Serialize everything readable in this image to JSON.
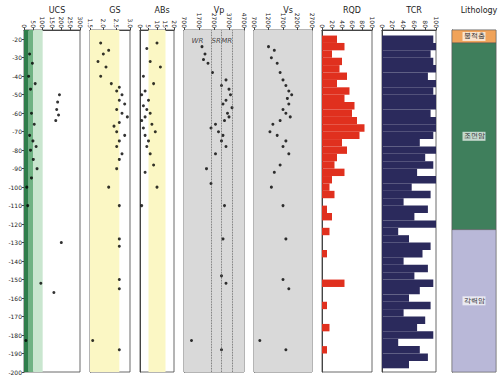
{
  "chart_data": [
    {
      "type": "scatter",
      "title": "UCS",
      "color": "#000000",
      "marker": "circle",
      "tick_labels": true,
      "x": [
        30,
        45,
        25,
        60,
        35,
        190,
        180,
        175,
        185,
        170,
        40,
        55,
        30,
        48,
        65,
        35,
        50,
        70,
        40,
        15,
        20,
        200,
        90,
        160,
        10
      ],
      "y": [
        -28,
        -33,
        -40,
        -44,
        -47,
        -50,
        -54,
        -58,
        -61,
        -64,
        -60,
        -66,
        -72,
        -75,
        -78,
        -80,
        -85,
        -90,
        -95,
        -100,
        -110,
        -130,
        -152,
        -157,
        -183
      ],
      "xlim": [
        0,
        300
      ],
      "xticks": [
        0,
        50,
        100,
        150,
        200,
        250,
        300
      ],
      "ylim": [
        -200,
        -15
      ],
      "yticks": [
        -200,
        -190,
        -180,
        -170,
        -160,
        -150,
        -140,
        -130,
        -120,
        -110,
        -100,
        -90,
        -80,
        -70,
        -60,
        -50,
        -40,
        -30,
        -20
      ],
      "bands": [
        {
          "from": 0,
          "to": 25,
          "color": "#2e7d4a"
        },
        {
          "from": 25,
          "to": 50,
          "color": "#6fb283"
        },
        {
          "from": 50,
          "to": 100,
          "color": "#c9e6cf"
        }
      ]
    },
    {
      "type": "scatter",
      "title": "GS",
      "color": "#000000",
      "marker": "circle",
      "tick_labels": "x",
      "x": [
        1.9,
        2.2,
        2.0,
        1.8,
        2.1,
        1.9,
        2.3,
        2.6,
        2.5,
        2.7,
        2.6,
        2.8,
        2.5,
        2.7,
        2.9,
        2.6,
        2.4,
        2.5,
        2.8,
        2.6,
        2.5,
        2.7,
        2.6,
        2.5,
        2.2,
        2.6,
        2.6,
        2.6,
        2.6,
        2.6,
        1.6,
        2.6
      ],
      "y": [
        -22,
        -26,
        -28,
        -32,
        -35,
        -40,
        -44,
        -46,
        -48,
        -50,
        -53,
        -55,
        -58,
        -60,
        -62,
        -65,
        -67,
        -70,
        -72,
        -75,
        -78,
        -82,
        -85,
        -90,
        -100,
        -110,
        -128,
        -132,
        -150,
        -155,
        -183,
        -188
      ],
      "xlim": [
        1.5,
        3.0
      ],
      "xticks": [
        1.5,
        {
          "value": 2,
          "label": "2.0"
        },
        2.5,
        {
          "value": 3,
          "label": "3.0"
        }
      ],
      "ylim": [
        -200,
        -15
      ],
      "yticks": [
        -200,
        -190,
        -180,
        -170,
        -160,
        -150,
        -140,
        -130,
        -120,
        -110,
        -100,
        -90,
        -80,
        -70,
        -60,
        -50,
        -40,
        -30,
        -20
      ],
      "bands": [
        {
          "from": 1.5,
          "to": 2.6,
          "color": "#fbf7c4"
        }
      ]
    },
    {
      "type": "scatter",
      "title": "ABs",
      "color": "#000000",
      "marker": "circle",
      "tick_labels": "x",
      "x": [
        4,
        10,
        6,
        12,
        2,
        8,
        3,
        1,
        5,
        2,
        4,
        6,
        3,
        1,
        7,
        2,
        9,
        3,
        5,
        4,
        6,
        8,
        3,
        10,
        1
      ],
      "y": [
        -25,
        -22,
        -32,
        -35,
        -40,
        -44,
        -48,
        -50,
        -53,
        -56,
        -58,
        -60,
        -62,
        -64,
        -66,
        -68,
        -70,
        -72,
        -75,
        -78,
        -82,
        -88,
        -92,
        -100,
        -110
      ],
      "xlim": [
        0,
        20
      ],
      "xticks": [
        0,
        5,
        10,
        15,
        20
      ],
      "ylim": [
        -200,
        -15
      ],
      "yticks": [
        -200,
        -190,
        -180,
        -170,
        -160,
        -150,
        -140,
        -130,
        -120,
        -110,
        -100,
        -90,
        -80,
        -70,
        -60,
        -50,
        -40,
        -30,
        -20
      ],
      "bands": [
        {
          "from": 5,
          "to": 15,
          "color": "#fbf7c4"
        }
      ]
    },
    {
      "type": "scatter",
      "title": "Vp",
      "color": "#000000",
      "marker": "circle",
      "tick_labels": "x",
      "x": [
        1900,
        2100,
        2000,
        2300,
        2600,
        3500,
        3200,
        3700,
        3800,
        3500,
        3300,
        3900,
        3600,
        3700,
        3400,
        2800,
        2500,
        3000,
        3300,
        3200,
        3500,
        2800,
        2200,
        2500,
        3400,
        3300,
        3200,
        3500,
        1200,
        3200
      ],
      "y": [
        -24,
        -28,
        -31,
        -33,
        -38,
        -42,
        -45,
        -47,
        -50,
        -53,
        -55,
        -57,
        -60,
        -62,
        -64,
        -66,
        -68,
        -70,
        -72,
        -75,
        -78,
        -82,
        -90,
        -98,
        -110,
        -128,
        -148,
        -152,
        -183,
        -188
      ],
      "xlim": [
        700,
        4700
      ],
      "xticks": [
        700,
        1700,
        2700,
        3700,
        4700
      ],
      "ylim": [
        -200,
        -15
      ],
      "yticks": [
        -200,
        -190,
        -180,
        -170,
        -160,
        -150,
        -140,
        -130,
        -120,
        -110,
        -100,
        -90,
        -80,
        -70,
        -60,
        -50,
        -40,
        -30,
        -20
      ],
      "bands": [
        {
          "from": 700,
          "to": 4700,
          "color": "#d9d9d9"
        }
      ],
      "reference_lines": [
        2500,
        3200,
        3900
      ],
      "line_style": "dotted",
      "annotations": [
        {
          "text": "WR",
          "x": 1600,
          "y": -21
        },
        {
          "text": "SR",
          "x": 2850,
          "y": -21
        },
        {
          "text": "MR",
          "x": 3550,
          "y": -21
        }
      ]
    },
    {
      "type": "scatter",
      "title": "Vs",
      "color": "#000000",
      "marker": "circle",
      "tick_labels": "x",
      "x": [
        1200,
        1400,
        1300,
        1500,
        1600,
        1700,
        1800,
        1900,
        2000,
        1850,
        1900,
        1700,
        1800,
        1950,
        1600,
        1350,
        1250,
        1500,
        1800,
        1700,
        1900,
        1600,
        1400,
        1300,
        1700,
        1800,
        1700,
        1900,
        900,
        1800
      ],
      "y": [
        -24,
        -26,
        -30,
        -33,
        -38,
        -42,
        -45,
        -48,
        -50,
        -52,
        -55,
        -58,
        -60,
        -62,
        -64,
        -66,
        -70,
        -72,
        -75,
        -78,
        -82,
        -88,
        -92,
        -100,
        -110,
        -128,
        -150,
        -155,
        -183,
        -188
      ],
      "xlim": [
        700,
        2700
      ],
      "xticks": [
        700,
        1200,
        1700,
        2200,
        2700
      ],
      "ylim": [
        -200,
        -15
      ],
      "yticks": [
        -200,
        -190,
        -180,
        -170,
        -160,
        -150,
        -140,
        -130,
        -120,
        -110,
        -100,
        -90,
        -80,
        -70,
        -60,
        -50,
        -40,
        -30,
        -20
      ],
      "bands": [
        {
          "from": 700,
          "to": 2700,
          "color": "#d9d9d9"
        }
      ]
    },
    {
      "type": "bar",
      "title": "RQD",
      "orientation": "horizontal",
      "color": "#e0301e",
      "tick_labels": "x",
      "depth_from": [
        -18,
        -22,
        -26,
        -30,
        -34,
        -38,
        -42,
        -46,
        -50,
        -54,
        -58,
        -62,
        -66,
        -70,
        -74,
        -78,
        -82,
        -86,
        -90,
        -94,
        -98,
        -102,
        -106,
        -110,
        -114,
        -118,
        -122,
        -126,
        -130,
        -134,
        -138,
        -142,
        -146,
        -150,
        -154,
        -158,
        -162,
        -166,
        -170,
        -174,
        -178,
        -182,
        -186,
        -190,
        -194
      ],
      "depth_to": [
        -22,
        -26,
        -30,
        -34,
        -38,
        -42,
        -46,
        -50,
        -54,
        -58,
        -62,
        -66,
        -70,
        -74,
        -78,
        -82,
        -86,
        -90,
        -94,
        -98,
        -102,
        -106,
        -110,
        -114,
        -118,
        -122,
        -126,
        -130,
        -134,
        -138,
        -142,
        -146,
        -150,
        -154,
        -158,
        -162,
        -166,
        -170,
        -174,
        -178,
        -182,
        -186,
        -190,
        -194,
        -198
      ],
      "values": [
        30,
        45,
        20,
        40,
        35,
        50,
        30,
        55,
        45,
        65,
        60,
        70,
        85,
        75,
        40,
        50,
        30,
        25,
        45,
        20,
        15,
        25,
        0,
        10,
        20,
        0,
        15,
        0,
        0,
        10,
        0,
        0,
        0,
        45,
        0,
        0,
        10,
        0,
        0,
        15,
        0,
        0,
        10,
        0,
        0
      ],
      "xlim": [
        0,
        100
      ],
      "xticks": [
        0,
        20,
        40,
        60,
        80,
        100
      ],
      "ylim": [
        -200,
        -15
      ],
      "yticks": [
        -200,
        -190,
        -180,
        -170,
        -160,
        -150,
        -140,
        -130,
        -120,
        -110,
        -100,
        -90,
        -80,
        -70,
        -60,
        -50,
        -40,
        -30,
        -20
      ]
    },
    {
      "type": "bar",
      "title": "TCR",
      "orientation": "horizontal",
      "color": "#2b2a5c",
      "tick_labels": "x",
      "depth_from": [
        -18,
        -22,
        -26,
        -30,
        -34,
        -38,
        -42,
        -46,
        -50,
        -54,
        -58,
        -62,
        -66,
        -70,
        -74,
        -78,
        -82,
        -86,
        -90,
        -94,
        -98,
        -102,
        -106,
        -110,
        -114,
        -118,
        -122,
        -126,
        -130,
        -134,
        -138,
        -142,
        -146,
        -150,
        -154,
        -158,
        -162,
        -166,
        -170,
        -174,
        -178,
        -182,
        -186,
        -190,
        -194
      ],
      "depth_to": [
        -22,
        -26,
        -30,
        -34,
        -38,
        -42,
        -46,
        -50,
        -54,
        -58,
        -62,
        -66,
        -70,
        -74,
        -78,
        -82,
        -86,
        -90,
        -94,
        -98,
        -102,
        -106,
        -110,
        -114,
        -118,
        -122,
        -126,
        -130,
        -134,
        -138,
        -142,
        -146,
        -150,
        -154,
        -158,
        -162,
        -166,
        -170,
        -174,
        -178,
        -182,
        -186,
        -190,
        -194,
        -198
      ],
      "values": [
        95,
        100,
        90,
        95,
        100,
        85,
        100,
        95,
        100,
        100,
        90,
        100,
        100,
        95,
        70,
        100,
        80,
        95,
        65,
        100,
        55,
        90,
        40,
        85,
        60,
        100,
        30,
        50,
        90,
        75,
        40,
        85,
        60,
        95,
        70,
        50,
        90,
        40,
        80,
        65,
        95,
        30,
        70,
        85,
        50
      ],
      "xlim": [
        0,
        100
      ],
      "xticks": [
        0,
        20,
        40,
        60,
        80,
        100
      ],
      "ylim": [
        -200,
        -15
      ],
      "yticks": [
        -200,
        -190,
        -180,
        -170,
        -160,
        -150,
        -140,
        -130,
        -120,
        -110,
        -100,
        -90,
        -80,
        -70,
        -60,
        -50,
        -40,
        -30,
        -20
      ]
    },
    {
      "type": "column",
      "title": "Lithology",
      "tick_labels": false,
      "ylim": [
        -200,
        -15
      ],
      "yticks": [
        -200,
        -190,
        -180,
        -170,
        -160,
        -150,
        -140,
        -130,
        -120,
        -110,
        -100,
        -90,
        -80,
        -70,
        -60,
        -50,
        -40,
        -30,
        -20
      ],
      "layers": [
        {
          "name": "붕적층",
          "from": -15,
          "to": -22,
          "color": "#f0a35a"
        },
        {
          "name": "조면암",
          "from": -22,
          "to": -123,
          "color": "#3f7f5c"
        },
        {
          "name": "각력암",
          "from": -123,
          "to": -200,
          "color": "#b9b8d8"
        }
      ]
    }
  ]
}
